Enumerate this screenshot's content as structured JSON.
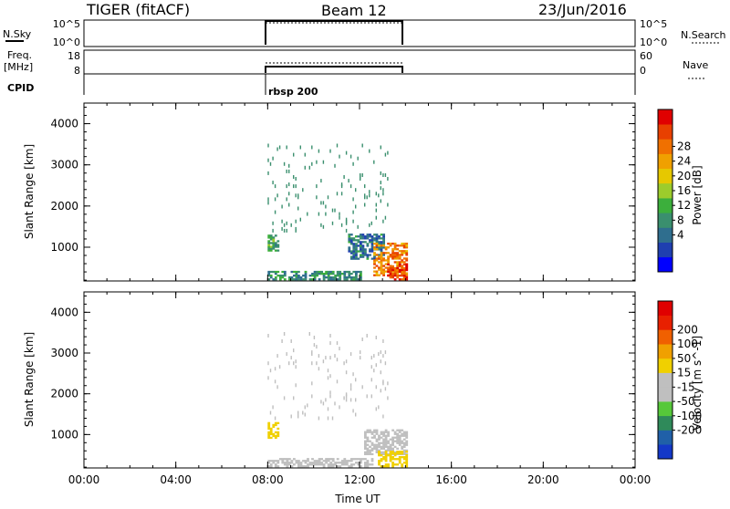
{
  "header": {
    "radar": "TIGER (fitACF)",
    "beam": "Beam 12",
    "date": "23/Jun/2016"
  },
  "params": {
    "nsky_label": "N.Sky",
    "nsearch_label": "N.Search",
    "nsky_ticks": [
      "10^5",
      "10^0"
    ],
    "freq_label_1": "Freq.",
    "freq_label_2": "[MHz]",
    "freq_ticks": [
      "18",
      "8"
    ],
    "nave_label": "Nave",
    "nave_ticks": [
      "60",
      "0"
    ],
    "cpid_label": "CPID",
    "cpid_value": "rbsp 200"
  },
  "colorbars": {
    "power": {
      "label": "Power [dB]",
      "ticks": [
        "28",
        "24",
        "20",
        "16",
        "12",
        "8",
        "4"
      ],
      "colors": [
        "#0000ff",
        "#1f3fb0",
        "#2f6e8e",
        "#3a8f6e",
        "#3caf3c",
        "#9ccc2c",
        "#e6c800",
        "#f0a000",
        "#f07000",
        "#e84000",
        "#e00000"
      ]
    },
    "velocity": {
      "label": "Velocity [m s^-1]",
      "ticks": [
        "200",
        "100",
        "50",
        "15",
        "-15",
        "-50",
        "-100",
        "-200"
      ],
      "colors": [
        "#1438c8",
        "#2060a8",
        "#2f8a5a",
        "#56c83a",
        "#bfbfbf",
        "#bfbfbf",
        "#f0d000",
        "#f0a000",
        "#f06000",
        "#e82000",
        "#e00000"
      ]
    }
  },
  "chart_data": [
    {
      "type": "heatmap",
      "title": "Beam 12",
      "quantity": "Power [dB]",
      "xlabel": "Time UT",
      "ylabel": "Slant Range [km]",
      "xlim": [
        "00:00",
        "24:00"
      ],
      "x_tick_labels": [
        "00:00",
        "04:00",
        "08:00",
        "12:00",
        "16:00",
        "20:00",
        "00:00"
      ],
      "ylim": [
        180,
        4500
      ],
      "y_tick_labels": [
        "1000",
        "2000",
        "3000",
        "4000"
      ],
      "clim": [
        0,
        32
      ],
      "data_regions": [
        {
          "start_h": 8.0,
          "end_h": 8.4,
          "range_min": 900,
          "range_max": 1300,
          "value": 12
        },
        {
          "start_h": 11.5,
          "end_h": 13.0,
          "range_min": 700,
          "range_max": 1300,
          "value": 8
        },
        {
          "start_h": 12.6,
          "end_h": 14.0,
          "range_min": 300,
          "range_max": 1100,
          "value": 24
        },
        {
          "start_h": 13.2,
          "end_h": 14.0,
          "range_min": 200,
          "range_max": 600,
          "value": 28
        },
        {
          "start_h": 8.0,
          "end_h": 12.0,
          "range_min": 200,
          "range_max": 400,
          "value": 10
        },
        {
          "start_h": 8.0,
          "end_h": 13.2,
          "range_min": 1400,
          "range_max": 3500,
          "value": 10,
          "sparse": true
        }
      ]
    },
    {
      "type": "heatmap",
      "quantity": "Velocity [m s^-1]",
      "xlabel": "Time UT",
      "ylabel": "Slant Range [km]",
      "xlim": [
        "00:00",
        "24:00"
      ],
      "x_tick_labels": [
        "00:00",
        "04:00",
        "08:00",
        "12:00",
        "16:00",
        "20:00",
        "00:00"
      ],
      "ylim": [
        180,
        4500
      ],
      "y_tick_labels": [
        "1000",
        "2000",
        "3000",
        "4000"
      ],
      "clim": [
        -250,
        250
      ],
      "data_regions": [
        {
          "start_h": 8.0,
          "end_h": 8.4,
          "range_min": 900,
          "range_max": 1300,
          "value": 60
        },
        {
          "start_h": 12.2,
          "end_h": 14.0,
          "range_min": 500,
          "range_max": 1100,
          "value": 0
        },
        {
          "start_h": 12.8,
          "end_h": 14.0,
          "range_min": 200,
          "range_max": 600,
          "value": 50
        },
        {
          "start_h": 8.0,
          "end_h": 12.5,
          "range_min": 200,
          "range_max": 400,
          "value": -40
        },
        {
          "start_h": 8.0,
          "end_h": 13.2,
          "range_min": 1400,
          "range_max": 3500,
          "value": 0,
          "sparse": true
        }
      ]
    }
  ]
}
